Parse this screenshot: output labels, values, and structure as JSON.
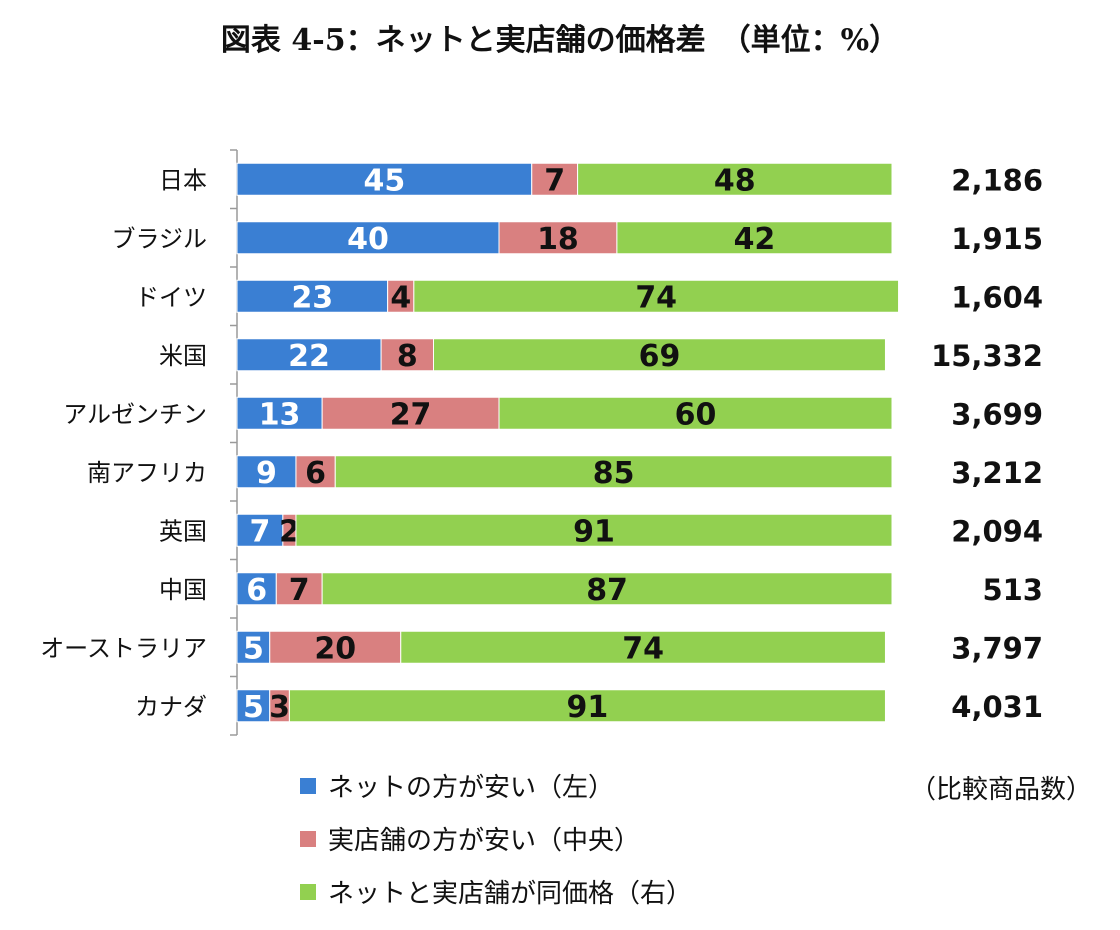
{
  "chart_data": {
    "type": "bar",
    "orientation": "horizontal",
    "stacked": true,
    "title": "図表 4-5：ネットと実店舗の価格差　（単位：%）",
    "categories": [
      "日本",
      "ブラジル",
      "ドイツ",
      "米国",
      "アルゼンチン",
      "南アフリカ",
      "英国",
      "中国",
      "オーストラリア",
      "カナダ"
    ],
    "series": [
      {
        "name": "ネットの方が安い（左）",
        "color": "#3a7fd3",
        "label_color": "#ffffff",
        "values": [
          45,
          40,
          23,
          22,
          13,
          9,
          7,
          6,
          5,
          5
        ]
      },
      {
        "name": "実店舗の方が安い（中央）",
        "color": "#d98080",
        "label_color": "#111111",
        "values": [
          7,
          18,
          4,
          8,
          27,
          6,
          2,
          7,
          20,
          3
        ]
      },
      {
        "name": "ネットと実店舗が同価格（右）",
        "color": "#92d050",
        "label_color": "#111111",
        "values": [
          48,
          42,
          74,
          69,
          60,
          85,
          91,
          87,
          74,
          91
        ]
      }
    ],
    "right_column": {
      "values": [
        "2,186",
        "1,915",
        "1,604",
        "15,332",
        "3,699",
        "3,212",
        "2,094",
        "513",
        "3,797",
        "4,031"
      ],
      "caption": "（比較商品数）"
    },
    "xlim": [
      0,
      100
    ],
    "grid": false,
    "legend_position": "bottom-left"
  }
}
